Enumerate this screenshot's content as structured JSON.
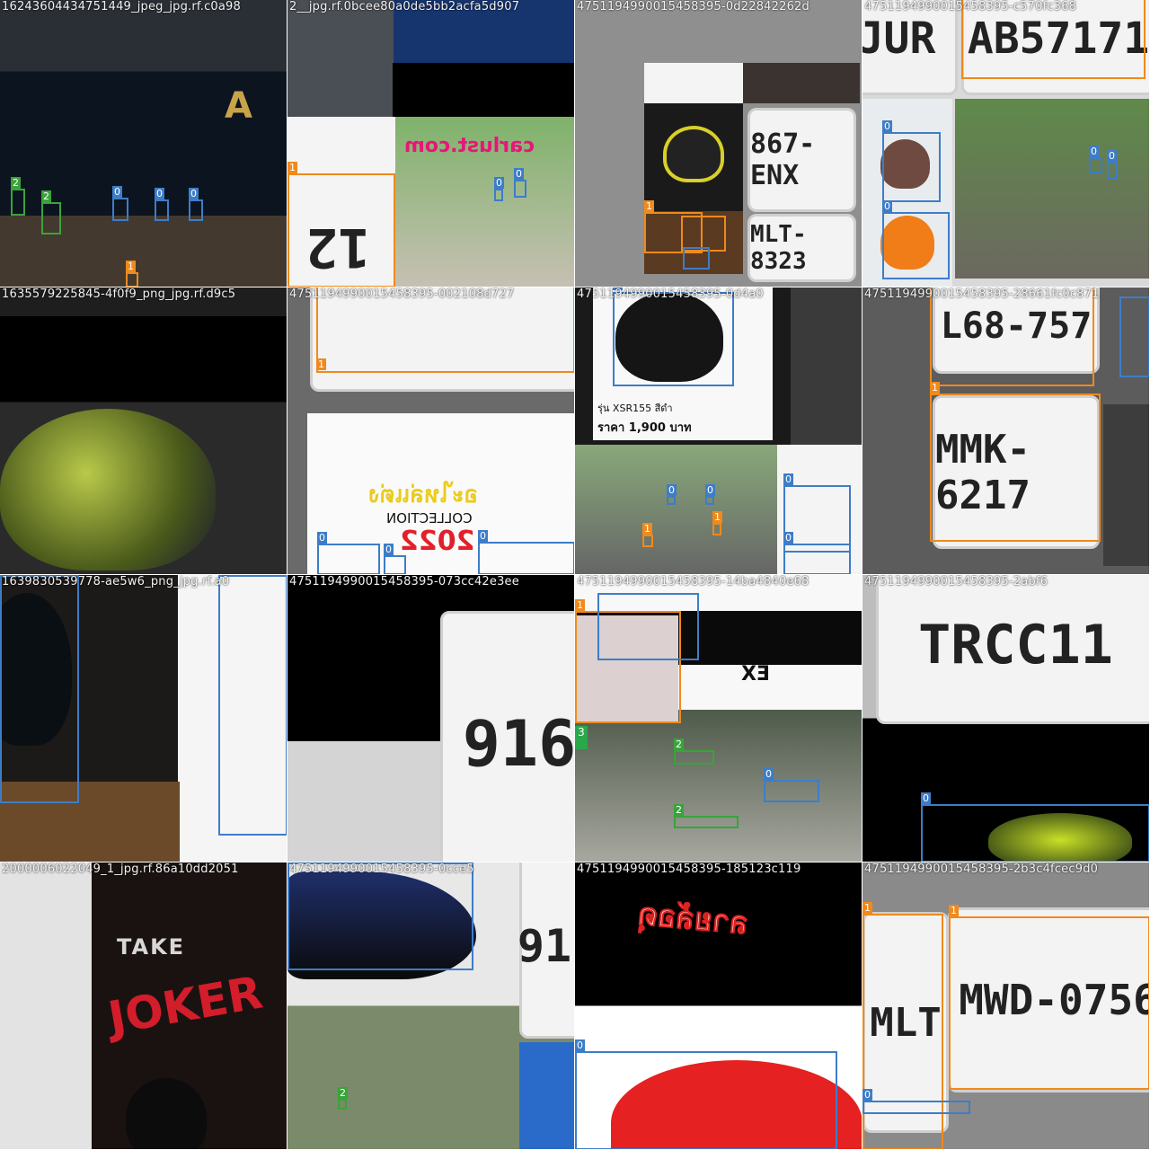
{
  "mosaic": {
    "tiles": [
      {
        "name": "16243604434751449_jpeg_jpg.rf.c0a98"
      },
      {
        "name": "2__jpg.rf.0bcee80a0de5bb2acfa5d907"
      },
      {
        "name": "47511949900154583​95-0d22842262d"
      },
      {
        "name": "47511949900154583​95-c570fc368"
      },
      {
        "name": "1635579225845-4f0f9_png_jpg.rf.d9c5"
      },
      {
        "name": "47511949900154583​95-002108d727"
      },
      {
        "name": "47511949900154583​95-0d4a0"
      },
      {
        "name": "47511949900154583​95-28661fc0c871"
      },
      {
        "name": "1639830539778-ae5w6_png_jpg.rf.a0"
      },
      {
        "name": "47511949900154583​95-073cc42e3ee"
      },
      {
        "name": "47511949900154583​95-14ba4840e68"
      },
      {
        "name": "47511949900154583​95-2abf6"
      },
      {
        "name": "2000006022049_1_jpg.rf.86a10dd2051"
      },
      {
        "name": "47511949900154583​95-0cce5"
      },
      {
        "name": "47511949900154583​95-185123c119"
      },
      {
        "name": "47511949900154583​95-2b3c4fcec9d0"
      }
    ],
    "plates": {
      "p1": "AB57171",
      "p2": "867-ENX",
      "p3": "MLT-8323",
      "p4": "L68-757",
      "p5": "MMK-6217",
      "p6": "916",
      "p7": "TRCC11",
      "p8": "MWD-0756",
      "p9": "MLT",
      "p10": "JUR"
    },
    "texts": {
      "carlust": "carlust.com",
      "collection": "COLLECTION",
      "year": "2022",
      "joker": "JOKER",
      "ex": "EX",
      "price": "รุ่น XSR155 สีดำ",
      "price2": "ราคา 1,900 บาท",
      "thai1": "อะไหล่แต่ง",
      "thai2": "ลายล้อดุ"
    },
    "labels": {
      "l0": "0",
      "l1": "1",
      "l2": "2",
      "l3": "3"
    }
  }
}
